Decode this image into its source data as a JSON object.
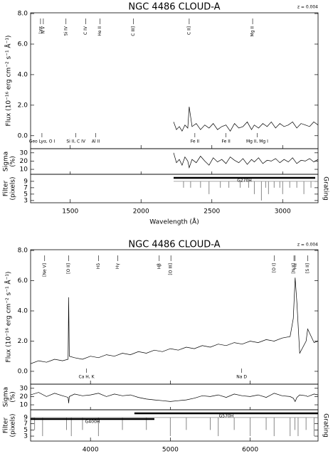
{
  "chart_data": [
    {
      "type": "line",
      "title": "NGC 4486 CLOUD-A",
      "redshift_label": "z = 0.004",
      "xlabel": "Wavelength (Å)",
      "ylabel": "Flux (10⁻¹⁶ erg cm⁻² s⁻¹ Å⁻¹)",
      "sigma_label": [
        "Sigma",
        "(%)"
      ],
      "filter_label": [
        "Filter",
        "(pixels)"
      ],
      "grating_label": "Grating",
      "xlim": [
        1220,
        3250
      ],
      "xticks": [
        1500,
        2000,
        2500,
        3000
      ],
      "ylim": [
        -0.85,
        8.05
      ],
      "yticks": [
        {
          "value": 0,
          "label": "0.0"
        },
        {
          "value": 2,
          "label": "2.0"
        },
        {
          "value": 4,
          "label": "4.0"
        },
        {
          "value": 6,
          "label": "6.0"
        },
        {
          "value": 8,
          "label": "8.0"
        }
      ],
      "sigma_ylim": [
        4,
        35
      ],
      "sigma_yticks": [
        10,
        20,
        30
      ],
      "filter_ylim": [
        2.3,
        11.2
      ],
      "filter_yticks": [
        3,
        5,
        7,
        9
      ],
      "x": [
        2230,
        2250,
        2270,
        2290,
        2310,
        2330,
        2340,
        2360,
        2390,
        2420,
        2450,
        2480,
        2510,
        2540,
        2570,
        2600,
        2630,
        2660,
        2690,
        2720,
        2750,
        2780,
        2800,
        2830,
        2860,
        2890,
        2920,
        2950,
        2980,
        3010,
        3040,
        3070,
        3100,
        3130,
        3160,
        3190,
        3220,
        3250
      ],
      "series": [
        {
          "values": [
            0.9,
            0.4,
            0.6,
            0.3,
            0.7,
            0.5,
            1.9,
            0.6,
            0.8,
            0.4,
            0.7,
            0.5,
            0.8,
            0.4,
            0.6,
            0.7,
            0.3,
            0.8,
            0.5,
            0.6,
            0.9,
            0.4,
            0.7,
            0.5,
            0.8,
            0.6,
            0.9,
            0.5,
            0.8,
            0.6,
            0.7,
            0.9,
            0.5,
            0.8,
            0.7,
            0.6,
            0.9,
            0.7
          ],
          "color": "#000000"
        }
      ],
      "sigma": {
        "values": [
          30,
          18,
          22,
          15,
          25,
          20,
          12,
          22,
          18,
          26,
          20,
          15,
          24,
          19,
          22,
          17,
          25,
          21,
          18,
          23,
          16,
          22,
          19,
          24,
          17,
          21,
          20,
          23,
          18,
          22,
          19,
          24,
          17,
          21,
          20,
          23,
          19,
          22
        ],
        "color": "#000000"
      },
      "filter": {
        "x": [
          2300,
          2350,
          2420,
          2480,
          2560,
          2620,
          2700,
          2760,
          2800,
          2850,
          2880,
          2900,
          2940,
          2980,
          3000,
          3050,
          3100,
          3150,
          3200
        ],
        "values": [
          7,
          7,
          7,
          5,
          7,
          7,
          7,
          7,
          5,
          3,
          7,
          5,
          7,
          7,
          5,
          7,
          7,
          5,
          7
        ],
        "color": "#888888"
      },
      "gratings": [
        {
          "label": "G270H",
          "start": 2230,
          "end": 3230
        }
      ],
      "emission_lines": [
        {
          "label": "Lyα",
          "x": 1290
        },
        {
          "label": "N V",
          "x": 1310
        },
        {
          "label": "Si IV",
          "x": 1470
        },
        {
          "label": "C IV",
          "x": 1610
        },
        {
          "label": "He II",
          "x": 1711
        },
        {
          "label": "C III]",
          "x": 1947
        },
        {
          "label": "C II]",
          "x": 2340
        },
        {
          "label": "Mg II",
          "x": 2788
        }
      ],
      "absorption_lines": [
        {
          "label": "Geo Lyα, O I",
          "x": 1300
        },
        {
          "label": "Si II, C IV",
          "x": 1540
        },
        {
          "label": "Al II",
          "x": 1680
        },
        {
          "label": "Fe II",
          "x": 2380
        },
        {
          "label": "Fe II",
          "x": 2600
        },
        {
          "label": "Mg II, Mg I",
          "x": 2820
        }
      ]
    },
    {
      "type": "line",
      "title": "NGC 4486 CLOUD-A",
      "redshift_label": "z = 0.004",
      "ylabel": "Flux (10⁻¹⁶ erg cm⁻² s⁻¹ Å⁻¹)",
      "sigma_label": [
        "Sigma",
        "(%)"
      ],
      "filter_label": [
        "Filter",
        "(pixels)"
      ],
      "grating_label": "Grating",
      "xlim": [
        3250,
        6850
      ],
      "xticks": [
        4000,
        5000,
        6000
      ],
      "ylim": [
        -0.85,
        8.05
      ],
      "yticks": [
        {
          "value": 0,
          "label": "0.0"
        },
        {
          "value": 2,
          "label": "2.0"
        },
        {
          "value": 4,
          "label": "4.0"
        },
        {
          "value": 6,
          "label": "6.0"
        },
        {
          "value": 8,
          "label": "8.0"
        }
      ],
      "sigma_ylim": [
        4,
        35
      ],
      "sigma_yticks": [
        10,
        20,
        30
      ],
      "filter_ylim": [
        1.4,
        11.5
      ],
      "filter_yticks": [
        3,
        5,
        7,
        9
      ],
      "x": [
        3250,
        3350,
        3450,
        3550,
        3650,
        3720,
        3727,
        3735,
        3800,
        3900,
        4000,
        4100,
        4200,
        4300,
        4400,
        4500,
        4600,
        4700,
        4800,
        4900,
        5000,
        5100,
        5200,
        5300,
        5400,
        5500,
        5600,
        5700,
        5800,
        5900,
        6000,
        6100,
        6200,
        6300,
        6400,
        6500,
        6540,
        6563,
        6585,
        6620,
        6700,
        6720,
        6800,
        6850
      ],
      "series": [
        {
          "values": [
            0.5,
            0.7,
            0.6,
            0.8,
            0.7,
            0.8,
            4.9,
            1.0,
            0.9,
            0.8,
            1.0,
            0.9,
            1.1,
            1.0,
            1.2,
            1.1,
            1.3,
            1.2,
            1.4,
            1.3,
            1.5,
            1.4,
            1.6,
            1.5,
            1.7,
            1.6,
            1.8,
            1.7,
            1.9,
            1.8,
            2.0,
            1.9,
            2.1,
            2.0,
            2.2,
            2.3,
            3.5,
            6.2,
            4.5,
            1.2,
            2.0,
            2.8,
            1.9,
            2.0
          ],
          "color": "#000000"
        }
      ],
      "sigma": {
        "values": [
          22,
          25,
          20,
          24,
          21,
          19,
          12,
          20,
          23,
          21,
          22,
          24,
          20,
          23,
          21,
          22,
          19,
          17,
          16,
          15,
          14,
          15,
          16,
          18,
          21,
          20,
          22,
          19,
          23,
          21,
          20,
          22,
          19,
          24,
          21,
          20,
          18,
          14,
          19,
          22,
          21,
          20,
          23,
          22
        ],
        "color": "#000000"
      },
      "filter": {
        "x": [
          3300,
          3400,
          3700,
          3760,
          3900,
          4100,
          4400,
          4700,
          5000,
          5200,
          5500,
          5600,
          5800,
          6000,
          6200,
          6300,
          6500,
          6560,
          6600,
          6700,
          6800
        ],
        "values": [
          5,
          3,
          5,
          3,
          5,
          3,
          5,
          5,
          3,
          5,
          5,
          3,
          5,
          3,
          5,
          3,
          3,
          5,
          3,
          5,
          3
        ],
        "color": "#888888"
      },
      "gratings": [
        {
          "label": "G400H",
          "start": 3250,
          "end": 4800
        },
        {
          "label": "G570H",
          "start": 4550,
          "end": 6850
        }
      ],
      "emission_lines": [
        {
          "label": "[Ne V]",
          "x": 3426
        },
        {
          "label": "[O II]",
          "x": 3727
        },
        {
          "label": "Hδ",
          "x": 4102
        },
        {
          "label": "Hγ",
          "x": 4340
        },
        {
          "label": "Hβ",
          "x": 4861
        },
        {
          "label": "[O III]",
          "x": 5007
        },
        {
          "label": "[O I]",
          "x": 6300
        },
        {
          "label": "[N II]",
          "x": 6548
        },
        {
          "label": "Hα",
          "x": 6563
        },
        {
          "label": "[S II]",
          "x": 6720
        }
      ],
      "absorption_lines": [
        {
          "label": "Ca H, K",
          "x": 3950
        },
        {
          "label": "Na D",
          "x": 5893
        }
      ]
    }
  ]
}
